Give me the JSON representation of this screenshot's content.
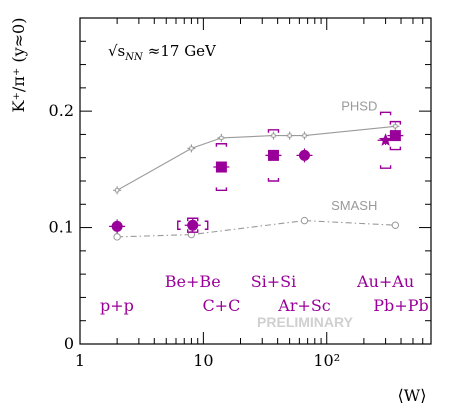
{
  "chart_data": {
    "type": "scatter",
    "title": "",
    "energy_label_prefix": "√s",
    "energy_label_sub": "NN",
    "energy_label_value": "≈17 GeV",
    "ylabel": "K⁺/π⁺ (y≈0)",
    "xlabel": "⟨W⟩",
    "xscale": "log",
    "xlim": [
      1,
      700
    ],
    "ylim": [
      0,
      0.28
    ],
    "x_tick_labels": [
      "1",
      "10",
      "10²"
    ],
    "y_tick_labels": [
      "0",
      "0.1",
      "0.2"
    ],
    "watermark": "PRELIMINARY",
    "colors": {
      "data": "#990099",
      "model": "#9a9a9a",
      "frame": "#000000"
    },
    "system_labels": [
      {
        "text": "p+p",
        "row": "lower"
      },
      {
        "text": "Be+Be",
        "row": "upper"
      },
      {
        "text": "C+C",
        "row": "lower"
      },
      {
        "text": "Si+Si",
        "row": "upper"
      },
      {
        "text": "Ar+Sc",
        "row": "lower"
      },
      {
        "text": "Au+Au",
        "row": "upper"
      },
      {
        "text": "Pb+Pb",
        "row": "lower"
      }
    ],
    "data_points": [
      {
        "system": "p+p",
        "marker": "circle",
        "x": 2,
        "y": 0.101,
        "stat_err": 0.006,
        "sys_err": 0
      },
      {
        "system": "Be+Be",
        "marker": "circle",
        "x": 8.2,
        "y": 0.102,
        "stat_err": 0.006,
        "sys_err": 0.006
      },
      {
        "system": "C+C",
        "marker": "square",
        "x": 14,
        "y": 0.152,
        "stat_err": 0.004,
        "sys_err": 0.02
      },
      {
        "system": "Si+Si",
        "marker": "square",
        "x": 37,
        "y": 0.162,
        "stat_err": 0.004,
        "sys_err": 0.022
      },
      {
        "system": "Ar+Sc",
        "marker": "circle",
        "x": 66,
        "y": 0.162,
        "stat_err": 0.006,
        "sys_err": 0
      },
      {
        "system": "Au+Au",
        "marker": "star",
        "x": 300,
        "y": 0.175,
        "stat_err": 0.004,
        "sys_err": 0.024
      },
      {
        "system": "Pb+Pb",
        "marker": "square",
        "x": 360,
        "y": 0.179,
        "stat_err": 0.003,
        "sys_err": 0.012
      }
    ],
    "series": [
      {
        "name": "PHSD",
        "style": "solid-cross",
        "x": [
          2,
          8,
          14,
          37,
          50,
          66,
          360
        ],
        "y": [
          0.132,
          0.168,
          0.177,
          0.179,
          0.179,
          0.179,
          0.187
        ]
      },
      {
        "name": "SMASH",
        "style": "dash-dot-circle",
        "x": [
          2,
          8,
          66,
          360
        ],
        "y": [
          0.092,
          0.094,
          0.106,
          0.102
        ]
      }
    ]
  }
}
